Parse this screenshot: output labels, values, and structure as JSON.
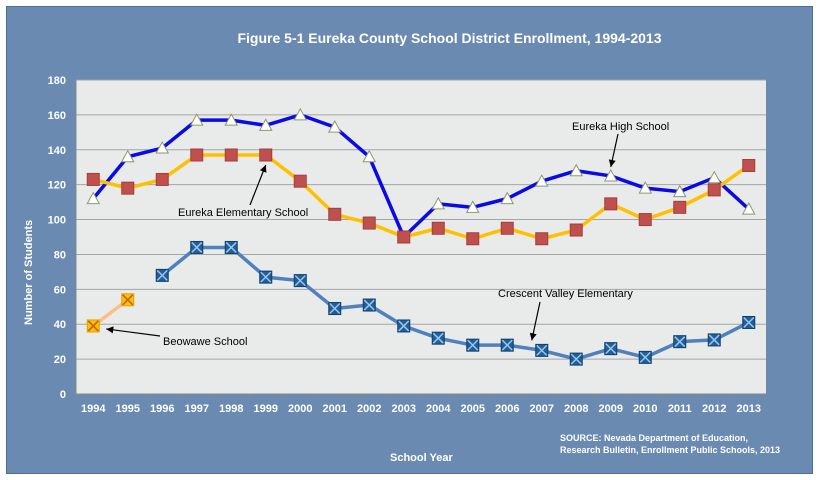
{
  "chart_data": {
    "type": "line",
    "title": "Figure 5-1 Eureka County School District Enrollment, 1994-2013",
    "xlabel": "School Year",
    "ylabel": "Number of Students",
    "ylim": [
      0,
      180
    ],
    "yticks": [
      0,
      20,
      40,
      60,
      80,
      100,
      120,
      140,
      160,
      180
    ],
    "grid": true,
    "categories": [
      "1994",
      "1995",
      "1996",
      "1997",
      "1998",
      "1999",
      "2000",
      "2001",
      "2002",
      "2003",
      "2004",
      "2005",
      "2006",
      "2007",
      "2008",
      "2009",
      "2010",
      "2011",
      "2012",
      "2013"
    ],
    "series": [
      {
        "name": "Eureka High School",
        "color": "#0a0ae6",
        "marker": "triangle",
        "values": [
          112,
          136,
          141,
          157,
          157,
          154,
          160,
          153,
          136,
          90,
          109,
          107,
          112,
          122,
          128,
          125,
          118,
          116,
          124,
          106
        ]
      },
      {
        "name": "Eureka Elementary School",
        "color": "#ffc000",
        "marker": "square",
        "values": [
          123,
          118,
          123,
          137,
          137,
          137,
          122,
          103,
          98,
          90,
          95,
          89,
          95,
          89,
          94,
          109,
          100,
          107,
          117,
          131
        ]
      },
      {
        "name": "Crescent Valley Elementary",
        "color": "#4f81bd",
        "marker": "x-square",
        "values": [
          null,
          null,
          68,
          84,
          84,
          67,
          65,
          49,
          51,
          39,
          32,
          28,
          28,
          25,
          20,
          26,
          21,
          30,
          31,
          41
        ]
      },
      {
        "name": "Beowawe School",
        "color": "#fbc08a",
        "marker": "x-square-orange",
        "values": [
          39,
          54,
          null,
          null,
          null,
          null,
          null,
          null,
          null,
          null,
          null,
          null,
          null,
          null,
          null,
          null,
          null,
          null,
          null,
          null
        ]
      }
    ],
    "annotations": [
      {
        "text": "Eureka High School",
        "series": 0,
        "points_to": "2009"
      },
      {
        "text": "Eureka Elementary School",
        "series": 1,
        "points_to": "1999"
      },
      {
        "text": "Crescent Valley Elementary",
        "series": 2,
        "points_to": "2007"
      },
      {
        "text": "Beowawe School",
        "series": 3,
        "points_to": "1994"
      }
    ],
    "source": [
      "SOURCE: Nevada Department of Education,",
      "Research Bulletin, Enrollment Public Schools, 2013"
    ]
  },
  "colors": {
    "frame": "#6a8ab2",
    "plot_bg": "#e9eaea",
    "grid": "#a5a5a5"
  }
}
